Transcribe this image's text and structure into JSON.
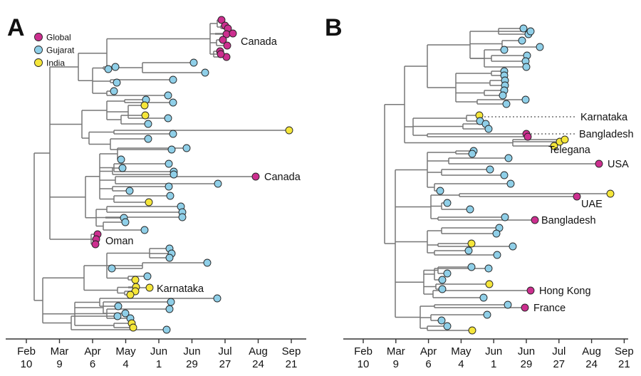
{
  "colors": {
    "Global": "#cc2f8f",
    "Gujarat": "#8fcfe8",
    "India": "#f5e63a",
    "branch": "#777777",
    "axis": "#333333"
  },
  "panels": [
    {
      "id": "A",
      "label": "A",
      "legend": [
        "Global",
        "Gujarat",
        "India"
      ],
      "tick_labels": [
        [
          "Feb",
          "10"
        ],
        [
          "Mar",
          "9"
        ],
        [
          "Apr",
          "6"
        ],
        [
          "May",
          "4"
        ],
        [
          "Jun",
          "1"
        ],
        [
          "Jun",
          "29"
        ],
        [
          "Jul",
          "27"
        ],
        [
          "Aug",
          "24"
        ],
        [
          "Sep",
          "21"
        ]
      ],
      "annotations": [
        "Canada",
        "Canada",
        "Oman",
        "Karnataka"
      ]
    },
    {
      "id": "B",
      "label": "B",
      "tick_labels": [
        [
          "Feb",
          "10"
        ],
        [
          "Mar",
          "9"
        ],
        [
          "Apr",
          "6"
        ],
        [
          "May",
          "4"
        ],
        [
          "Jun",
          "1"
        ],
        [
          "Jun",
          "29"
        ],
        [
          "Jul",
          "27"
        ],
        [
          "Aug",
          "24"
        ],
        [
          "Sep",
          "21"
        ]
      ],
      "annotations": [
        "Karnataka",
        "Bangladesh",
        "Telegana",
        "USA",
        "UAE",
        "Bangladesh",
        "Hong Kong",
        "France"
      ]
    }
  ]
}
